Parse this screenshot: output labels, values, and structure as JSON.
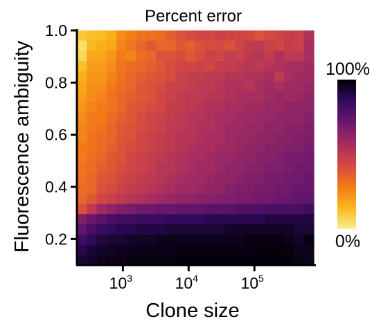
{
  "chart_data": {
    "type": "heatmap",
    "title": "Percent error",
    "xlabel": "Clone size",
    "ylabel": "Fluorescence ambiguity",
    "x_scale": "log",
    "xlim": [
      200,
      800000
    ],
    "ylim": [
      0.1,
      1.0
    ],
    "xticks": [
      {
        "value": 1000,
        "base": "10",
        "exp": "3"
      },
      {
        "value": 10000,
        "base": "10",
        "exp": "4"
      },
      {
        "value": 100000,
        "base": "10",
        "exp": "5"
      }
    ],
    "yticks": [
      {
        "value": 0.2,
        "label": "0.2"
      },
      {
        "value": 0.4,
        "label": "0.4"
      },
      {
        "value": 0.6,
        "label": "0.6"
      },
      {
        "value": 0.8,
        "label": "0.8"
      },
      {
        "value": 1.0,
        "label": "1.0"
      }
    ],
    "colorbar": {
      "min_label": "0%",
      "max_label": "100%",
      "stops": [
        "#f6f08a",
        "#fbb61a",
        "#f37819",
        "#d44842",
        "#a32c61",
        "#6b176e",
        "#320a5e",
        "#000004"
      ]
    },
    "grid_rows_top_to_bottom_y": [
      0.99,
      0.95,
      0.91,
      0.87,
      0.83,
      0.79,
      0.75,
      0.71,
      0.67,
      0.63,
      0.59,
      0.55,
      0.51,
      0.47,
      0.43,
      0.39,
      0.35,
      0.31,
      0.27,
      0.23,
      0.19,
      0.15,
      0.11
    ],
    "grid_cols_x": [
      250,
      350,
      500,
      700,
      1000,
      1400,
      2000,
      2800,
      4000,
      5600,
      8000,
      11000,
      16000,
      22000,
      32000,
      45000,
      63000,
      90000,
      130000,
      180000,
      250000,
      360000,
      500000,
      710000
    ],
    "values_percent_rows_top_to_bottom": [
      [
        10,
        12,
        13,
        16,
        24,
        27,
        30,
        31,
        32,
        36,
        40,
        42,
        44,
        44,
        46,
        45,
        44,
        43,
        40,
        43,
        45,
        47,
        46,
        53
      ],
      [
        4,
        14,
        16,
        18,
        26,
        30,
        34,
        38,
        34,
        34,
        38,
        36,
        40,
        42,
        42,
        40,
        45,
        48,
        50,
        46,
        44,
        48,
        46,
        56
      ],
      [
        6,
        18,
        18,
        22,
        28,
        26,
        32,
        34,
        40,
        40,
        42,
        38,
        42,
        46,
        44,
        48,
        46,
        50,
        52,
        48,
        54,
        50,
        50,
        56
      ],
      [
        12,
        20,
        20,
        24,
        30,
        32,
        34,
        36,
        38,
        42,
        44,
        44,
        46,
        44,
        48,
        48,
        50,
        52,
        50,
        52,
        54,
        56,
        56,
        58
      ],
      [
        16,
        22,
        22,
        26,
        30,
        34,
        36,
        38,
        40,
        42,
        46,
        48,
        48,
        50,
        50,
        52,
        52,
        54,
        54,
        56,
        50,
        56,
        58,
        58
      ],
      [
        18,
        24,
        24,
        28,
        32,
        34,
        38,
        40,
        42,
        46,
        46,
        48,
        50,
        50,
        52,
        54,
        54,
        52,
        56,
        58,
        56,
        58,
        58,
        60
      ],
      [
        20,
        24,
        26,
        30,
        34,
        36,
        38,
        40,
        44,
        46,
        48,
        50,
        50,
        52,
        52,
        54,
        56,
        56,
        56,
        58,
        60,
        58,
        60,
        62
      ],
      [
        22,
        26,
        28,
        30,
        34,
        38,
        40,
        42,
        44,
        48,
        48,
        50,
        52,
        54,
        54,
        56,
        56,
        58,
        58,
        60,
        60,
        62,
        62,
        62
      ],
      [
        24,
        28,
        28,
        32,
        36,
        38,
        42,
        44,
        46,
        48,
        50,
        52,
        52,
        54,
        56,
        56,
        58,
        58,
        60,
        60,
        62,
        62,
        62,
        64
      ],
      [
        26,
        28,
        30,
        34,
        38,
        40,
        42,
        44,
        46,
        50,
        50,
        52,
        54,
        54,
        56,
        58,
        58,
        60,
        60,
        62,
        62,
        64,
        64,
        66
      ],
      [
        26,
        30,
        32,
        34,
        38,
        40,
        44,
        46,
        48,
        50,
        52,
        52,
        54,
        56,
        56,
        58,
        60,
        60,
        62,
        62,
        64,
        64,
        66,
        66
      ],
      [
        28,
        30,
        32,
        36,
        40,
        42,
        44,
        46,
        48,
        50,
        52,
        54,
        56,
        56,
        58,
        58,
        60,
        62,
        62,
        64,
        64,
        66,
        66,
        68
      ],
      [
        28,
        32,
        34,
        38,
        40,
        44,
        46,
        48,
        50,
        52,
        54,
        56,
        56,
        58,
        60,
        60,
        62,
        62,
        64,
        64,
        66,
        68,
        68,
        70
      ],
      [
        30,
        32,
        36,
        38,
        42,
        44,
        46,
        48,
        52,
        52,
        54,
        56,
        58,
        58,
        60,
        62,
        62,
        64,
        64,
        66,
        66,
        68,
        70,
        70
      ],
      [
        30,
        34,
        38,
        40,
        44,
        46,
        48,
        50,
        52,
        54,
        56,
        58,
        58,
        60,
        62,
        62,
        64,
        66,
        66,
        68,
        68,
        70,
        70,
        72
      ],
      [
        32,
        34,
        40,
        42,
        46,
        48,
        50,
        52,
        54,
        56,
        58,
        58,
        60,
        62,
        62,
        64,
        66,
        66,
        68,
        68,
        70,
        70,
        72,
        72
      ],
      [
        34,
        38,
        44,
        46,
        50,
        52,
        54,
        56,
        58,
        60,
        62,
        62,
        64,
        64,
        66,
        66,
        68,
        68,
        70,
        70,
        72,
        72,
        74,
        74
      ],
      [
        40,
        50,
        58,
        62,
        66,
        68,
        70,
        70,
        72,
        72,
        74,
        74,
        74,
        76,
        76,
        76,
        78,
        78,
        78,
        80,
        80,
        80,
        80,
        82
      ],
      [
        66,
        72,
        76,
        80,
        82,
        82,
        84,
        84,
        84,
        86,
        86,
        86,
        86,
        88,
        88,
        88,
        88,
        88,
        88,
        90,
        90,
        90,
        90,
        90
      ],
      [
        74,
        80,
        84,
        86,
        88,
        88,
        90,
        90,
        90,
        92,
        92,
        92,
        92,
        92,
        92,
        94,
        94,
        94,
        94,
        94,
        94,
        94,
        92,
        92
      ],
      [
        82,
        86,
        90,
        92,
        92,
        94,
        94,
        94,
        96,
        96,
        96,
        96,
        96,
        96,
        96,
        96,
        96,
        98,
        98,
        98,
        98,
        96,
        94,
        98
      ],
      [
        88,
        92,
        94,
        95,
        96,
        96,
        97,
        97,
        97,
        97,
        98,
        98,
        98,
        98,
        98,
        98,
        98,
        98,
        99,
        99,
        99,
        98,
        96,
        96
      ],
      [
        92,
        94,
        96,
        97,
        97,
        98,
        98,
        98,
        98,
        98,
        99,
        99,
        99,
        99,
        99,
        99,
        99,
        99,
        99,
        99,
        99,
        99,
        97,
        96
      ]
    ]
  }
}
